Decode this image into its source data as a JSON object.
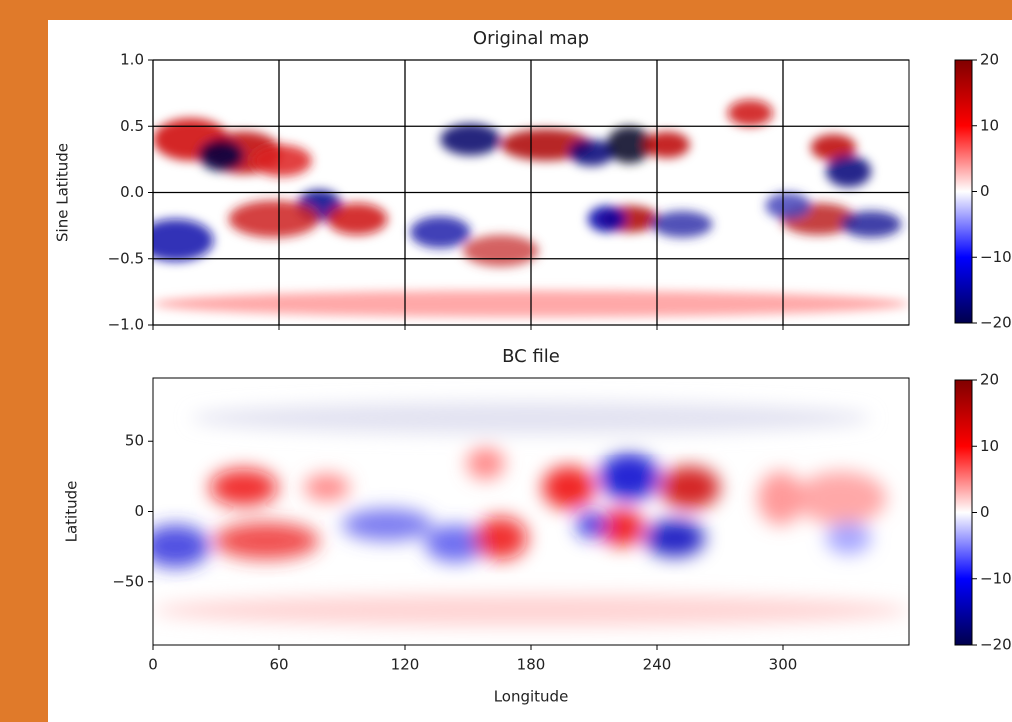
{
  "chart_data": [
    {
      "type": "heatmap",
      "title": "Original map",
      "ylabel": "Sine Latitude",
      "xlim": [
        0,
        360
      ],
      "xticks": [
        0,
        60,
        120,
        180,
        240,
        300
      ],
      "xtick_labels": false,
      "ylim": [
        -1,
        1
      ],
      "yticks": [
        {
          "value": -1,
          "label": "−1.0"
        },
        {
          "value": -0.5,
          "label": "−0.5"
        },
        {
          "value": 0,
          "label": "0.0"
        },
        {
          "value": 0.5,
          "label": "0.5"
        },
        {
          "value": 1,
          "label": "1.0"
        }
      ],
      "grid": true,
      "cmap": "seismic",
      "colorbar": {
        "lim": [
          -20,
          20
        ],
        "ticks": [
          {
            "value": -20,
            "label": "−20"
          },
          {
            "value": -10,
            "label": "−10"
          },
          0,
          10,
          20
        ]
      }
    },
    {
      "type": "heatmap",
      "title": "BC file",
      "ylabel": "Latitude",
      "xlabel": "Longitude",
      "xlim": [
        0,
        360
      ],
      "xticks": [
        0,
        60,
        120,
        180,
        240,
        300
      ],
      "xtick_labels": true,
      "ylim": [
        -95,
        95
      ],
      "yticks": [
        {
          "value": -50,
          "label": "−50"
        },
        0,
        50
      ],
      "grid": false,
      "cmap": "seismic",
      "colorbar": {
        "lim": [
          -20,
          20
        ],
        "ticks": [
          {
            "value": -20,
            "label": "−20"
          },
          {
            "value": -10,
            "label": "−10"
          },
          0,
          10,
          20
        ]
      }
    }
  ]
}
